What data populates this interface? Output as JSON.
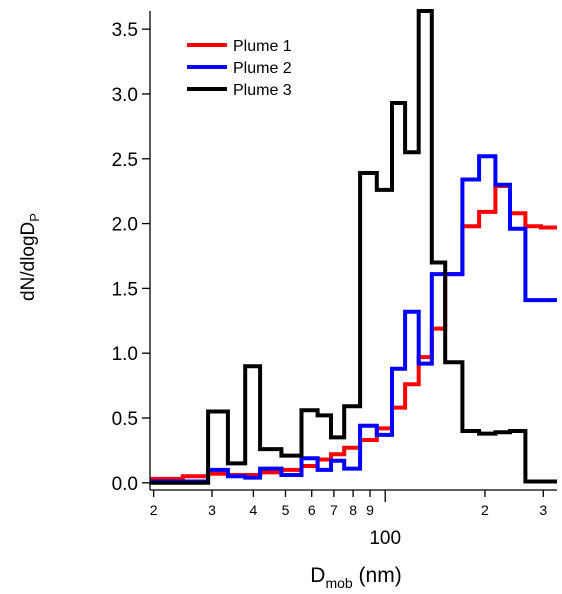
{
  "chart_data": {
    "type": "line",
    "step": true,
    "x_scale": "log",
    "xlim": [
      19.5,
      330
    ],
    "ylim": [
      -0.04,
      3.64
    ],
    "xlabel": {
      "main": "D",
      "sub": "mob",
      "rest": " (nm)"
    },
    "ylabel": {
      "main": "dN/dlogD",
      "sub": "P"
    },
    "x_ticks_major": [
      {
        "value": 100,
        "label": "100"
      }
    ],
    "x_ticks_minor": [
      {
        "value": 20,
        "label": "2"
      },
      {
        "value": 30,
        "label": "3"
      },
      {
        "value": 40,
        "label": "4"
      },
      {
        "value": 50,
        "label": "5"
      },
      {
        "value": 60,
        "label": "6"
      },
      {
        "value": 70,
        "label": "7"
      },
      {
        "value": 80,
        "label": "8"
      },
      {
        "value": 90,
        "label": "9"
      },
      {
        "value": 200,
        "label": "2"
      },
      {
        "value": 300,
        "label": "3"
      }
    ],
    "y_ticks": [
      {
        "value": 0.0,
        "label": "0.0"
      },
      {
        "value": 0.5,
        "label": "0.5"
      },
      {
        "value": 1.0,
        "label": "1.0"
      },
      {
        "value": 1.5,
        "label": "1.5"
      },
      {
        "value": 2.0,
        "label": "2.0"
      },
      {
        "value": 2.5,
        "label": "2.5"
      },
      {
        "value": 3.0,
        "label": "3.0"
      },
      {
        "value": 3.5,
        "label": "3.5"
      }
    ],
    "legend": {
      "position": "top-left"
    },
    "edges": [
      19.5,
      24.5,
      29.2,
      33.5,
      37.8,
      41.9,
      48.6,
      55.9,
      62.5,
      68.6,
      75.2,
      84.0,
      94.3,
      104.8,
      114.8,
      126.2,
      138.2,
      151.7,
      171.0,
      192.0,
      215.0,
      238.0,
      265.0,
      295.0,
      330.0
    ],
    "series": [
      {
        "name": "Plume 1",
        "color": "#ff0000",
        "values": [
          0.03,
          0.05,
          0.07,
          0.06,
          0.06,
          0.08,
          0.1,
          0.13,
          0.18,
          0.22,
          0.27,
          0.33,
          0.42,
          0.58,
          0.76,
          0.97,
          1.19,
          1.61,
          1.98,
          2.09,
          2.29,
          2.08,
          1.98,
          1.97
        ]
      },
      {
        "name": "Plume 2",
        "color": "#0000ff",
        "values": [
          0.01,
          0.01,
          0.1,
          0.05,
          0.04,
          0.11,
          0.06,
          0.19,
          0.1,
          0.17,
          0.11,
          0.44,
          0.37,
          0.88,
          1.32,
          0.92,
          1.61,
          1.61,
          2.34,
          2.52,
          2.3,
          1.96,
          1.41,
          1.41
        ]
      },
      {
        "name": "Plume 3",
        "color": "#000000",
        "values": [
          0.0,
          0.0,
          0.55,
          0.15,
          0.9,
          0.26,
          0.21,
          0.56,
          0.52,
          0.35,
          0.59,
          2.39,
          2.26,
          2.93,
          2.55,
          3.64,
          1.7,
          0.93,
          0.4,
          0.38,
          0.39,
          0.4,
          0.01,
          0.01
        ]
      }
    ]
  }
}
